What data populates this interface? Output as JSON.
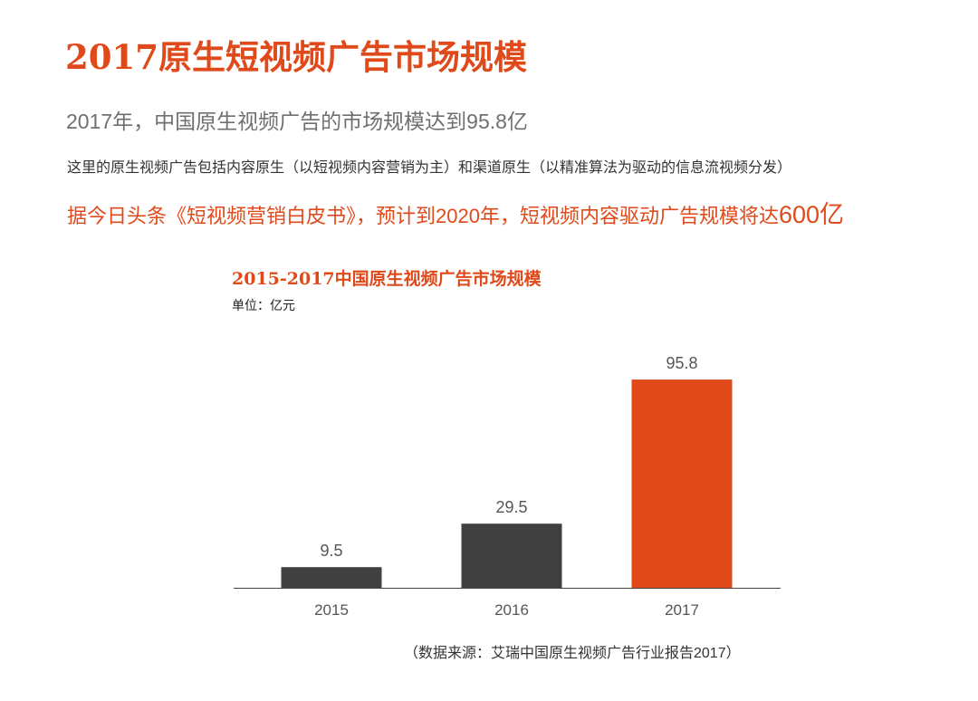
{
  "header": {
    "title": "2017原生短视频广告市场规模",
    "subtitle": "2017年，中国原生视频广告的市场规模达到95.8亿",
    "description": "这里的原生视频广告包括内容原生（以短视频内容营销为主）和渠道原生（以精准算法为驱动的信息流视频分发）",
    "forecast_text": "据今日头条《短视频营销白皮书》，预计到2020年，短视频内容驱动广告规模将达",
    "forecast_value": "600亿"
  },
  "colors": {
    "accent": "#e0491a",
    "bar_dark": "#404040",
    "axis": "#444444",
    "tick_text": "#555555"
  },
  "chart_data": {
    "type": "bar",
    "title": "2015-2017中国原生视频广告市场规模",
    "unit_label": "单位：亿元",
    "categories": [
      "2015",
      "2016",
      "2017"
    ],
    "values": [
      9.5,
      29.5,
      95.8
    ],
    "data_labels": [
      "9.5",
      "29.5",
      "95.8"
    ],
    "bar_colors": [
      "#404040",
      "#404040",
      "#e0491a"
    ],
    "xlabel": "",
    "ylabel": "",
    "ylim": [
      0,
      100
    ],
    "grid": false,
    "legend": "none"
  },
  "footer": {
    "source": "（数据来源：艾瑞中国原生视频广告行业报告2017）"
  }
}
